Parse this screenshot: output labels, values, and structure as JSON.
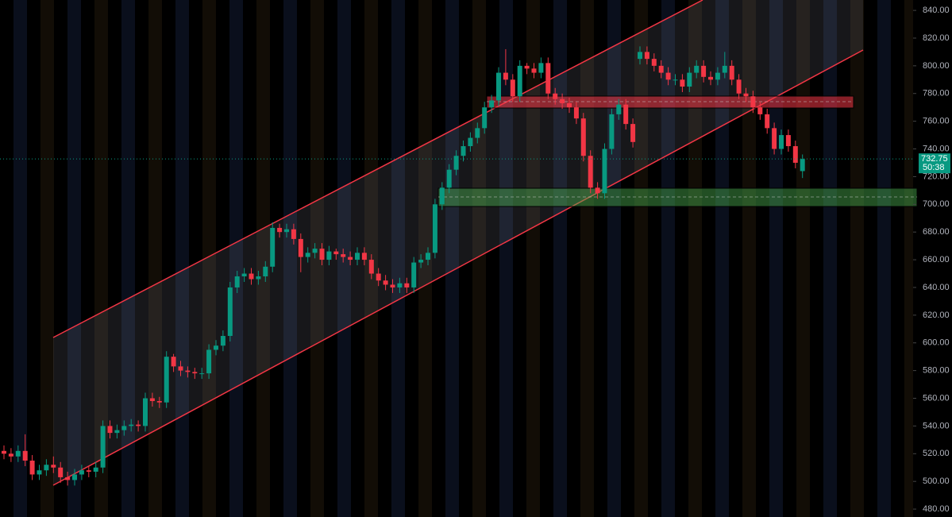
{
  "chart_data": {
    "type": "candlestick",
    "up_color": "#089981",
    "down_color": "#f23645",
    "ylim": [
      474.3,
      847.5
    ],
    "yticks": [
      {
        "value": 480,
        "label": "480.00"
      },
      {
        "value": 500,
        "label": "500.00"
      },
      {
        "value": 520,
        "label": "520.00"
      },
      {
        "value": 540,
        "label": "540.00"
      },
      {
        "value": 560,
        "label": "560.00"
      },
      {
        "value": 580,
        "label": "580.00"
      },
      {
        "value": 600,
        "label": "600.00"
      },
      {
        "value": 620,
        "label": "620.00"
      },
      {
        "value": 640,
        "label": "640.00"
      },
      {
        "value": 660,
        "label": "660.00"
      },
      {
        "value": 680,
        "label": "680.00"
      },
      {
        "value": 700,
        "label": "700.00"
      },
      {
        "value": 720,
        "label": "720.00"
      },
      {
        "value": 740,
        "label": "740.00"
      },
      {
        "value": 760,
        "label": "760.00"
      },
      {
        "value": 780,
        "label": "780.00"
      },
      {
        "value": 800,
        "label": "800.00"
      },
      {
        "value": 820,
        "label": "820.00"
      },
      {
        "value": 840,
        "label": "840.00"
      }
    ],
    "last_price": 732.75,
    "countdown": "50:38",
    "ohlc": [
      [
        522,
        526,
        516,
        520
      ],
      [
        520,
        524,
        514,
        518
      ],
      [
        518,
        526,
        514,
        522
      ],
      [
        522,
        534,
        511,
        515
      ],
      [
        515,
        519,
        501,
        505
      ],
      [
        505,
        512,
        501,
        508
      ],
      [
        508,
        516,
        504,
        512
      ],
      [
        512,
        518,
        506,
        510
      ],
      [
        510,
        514,
        499,
        503
      ],
      [
        503,
        507,
        497,
        501
      ],
      [
        501,
        509,
        497,
        505
      ],
      [
        505,
        512,
        501,
        508
      ],
      [
        508,
        511,
        503,
        507
      ],
      [
        507,
        514,
        503,
        510
      ],
      [
        510,
        544,
        506,
        540
      ],
      [
        540,
        544,
        531,
        535
      ],
      [
        535,
        541,
        531,
        537
      ],
      [
        537,
        544,
        533,
        540
      ],
      [
        540,
        545,
        536,
        541
      ],
      [
        541,
        544,
        536,
        540
      ],
      [
        540,
        564,
        536,
        560
      ],
      [
        560,
        564,
        554,
        558
      ],
      [
        558,
        561,
        553,
        557
      ],
      [
        557,
        594,
        553,
        590
      ],
      [
        590,
        592,
        579,
        583
      ],
      [
        583,
        587,
        576,
        580
      ],
      [
        580,
        583,
        575,
        579
      ],
      [
        579,
        582,
        574,
        578
      ],
      [
        578,
        582,
        574,
        578
      ],
      [
        578,
        599,
        574,
        595
      ],
      [
        595,
        602,
        591,
        598
      ],
      [
        598,
        609,
        594,
        605
      ],
      [
        605,
        644,
        601,
        640
      ],
      [
        640,
        652,
        636,
        648
      ],
      [
        648,
        654,
        644,
        650
      ],
      [
        650,
        654,
        642,
        646
      ],
      [
        646,
        652,
        642,
        648
      ],
      [
        648,
        659,
        644,
        655
      ],
      [
        655,
        687,
        651,
        683
      ],
      [
        683,
        686,
        676,
        680
      ],
      [
        680,
        686,
        676,
        682
      ],
      [
        682,
        686,
        671,
        675
      ],
      [
        675,
        679,
        651,
        662
      ],
      [
        662,
        669,
        658,
        665
      ],
      [
        665,
        672,
        661,
        668
      ],
      [
        668,
        672,
        656,
        660
      ],
      [
        660,
        670,
        656,
        666
      ],
      [
        666,
        668,
        660,
        664
      ],
      [
        664,
        668,
        658,
        662
      ],
      [
        662,
        666,
        656,
        660
      ],
      [
        660,
        669,
        656,
        665
      ],
      [
        665,
        669,
        656,
        660
      ],
      [
        660,
        664,
        646,
        650
      ],
      [
        650,
        654,
        641,
        645
      ],
      [
        645,
        649,
        638,
        642
      ],
      [
        642,
        646,
        636,
        640
      ],
      [
        640,
        647,
        636,
        643
      ],
      [
        643,
        647,
        636,
        640
      ],
      [
        640,
        662,
        636,
        658
      ],
      [
        658,
        664,
        654,
        660
      ],
      [
        660,
        669,
        656,
        665
      ],
      [
        665,
        704,
        661,
        700
      ],
      [
        700,
        716,
        696,
        712
      ],
      [
        712,
        729,
        708,
        725
      ],
      [
        725,
        739,
        721,
        735
      ],
      [
        735,
        746,
        731,
        742
      ],
      [
        742,
        752,
        738,
        748
      ],
      [
        748,
        759,
        744,
        755
      ],
      [
        755,
        774,
        751,
        770
      ],
      [
        770,
        779,
        766,
        775
      ],
      [
        775,
        799,
        771,
        795
      ],
      [
        795,
        812,
        786,
        790
      ],
      [
        790,
        794,
        774,
        778
      ],
      [
        778,
        804,
        774,
        800
      ],
      [
        800,
        802,
        794,
        798
      ],
      [
        798,
        802,
        791,
        795
      ],
      [
        795,
        806,
        791,
        802
      ],
      [
        802,
        806,
        776,
        780
      ],
      [
        780,
        784,
        772,
        776
      ],
      [
        776,
        780,
        769,
        773
      ],
      [
        773,
        777,
        766,
        770
      ],
      [
        770,
        774,
        758,
        762
      ],
      [
        762,
        766,
        731,
        735
      ],
      [
        735,
        739,
        708,
        712
      ],
      [
        712,
        716,
        704,
        708
      ],
      [
        708,
        744,
        704,
        740
      ],
      [
        740,
        769,
        736,
        765
      ],
      [
        765,
        776,
        761,
        772
      ],
      [
        772,
        776,
        754,
        758
      ],
      [
        758,
        762,
        741,
        745
      ],
      [
        805,
        814,
        801,
        810
      ],
      [
        810,
        814,
        801,
        805
      ],
      [
        805,
        809,
        796,
        800
      ],
      [
        800,
        804,
        791,
        795
      ],
      [
        795,
        799,
        786,
        790
      ],
      [
        790,
        794,
        786,
        790
      ],
      [
        790,
        794,
        781,
        785
      ],
      [
        785,
        799,
        781,
        795
      ],
      [
        795,
        804,
        791,
        800
      ],
      [
        800,
        804,
        788,
        792
      ],
      [
        792,
        796,
        786,
        790
      ],
      [
        790,
        799,
        786,
        795
      ],
      [
        795,
        810,
        791,
        800
      ],
      [
        800,
        804,
        786,
        790
      ],
      [
        790,
        794,
        776,
        780
      ],
      [
        780,
        784,
        774,
        778
      ],
      [
        778,
        782,
        766,
        770
      ],
      [
        770,
        774,
        761,
        765
      ],
      [
        765,
        769,
        751,
        755
      ],
      [
        755,
        759,
        736,
        740
      ],
      [
        740,
        754,
        736,
        750
      ],
      [
        750,
        754,
        738,
        742
      ],
      [
        742,
        746,
        726,
        730
      ],
      [
        724,
        736,
        719,
        732.75
      ]
    ]
  }
}
